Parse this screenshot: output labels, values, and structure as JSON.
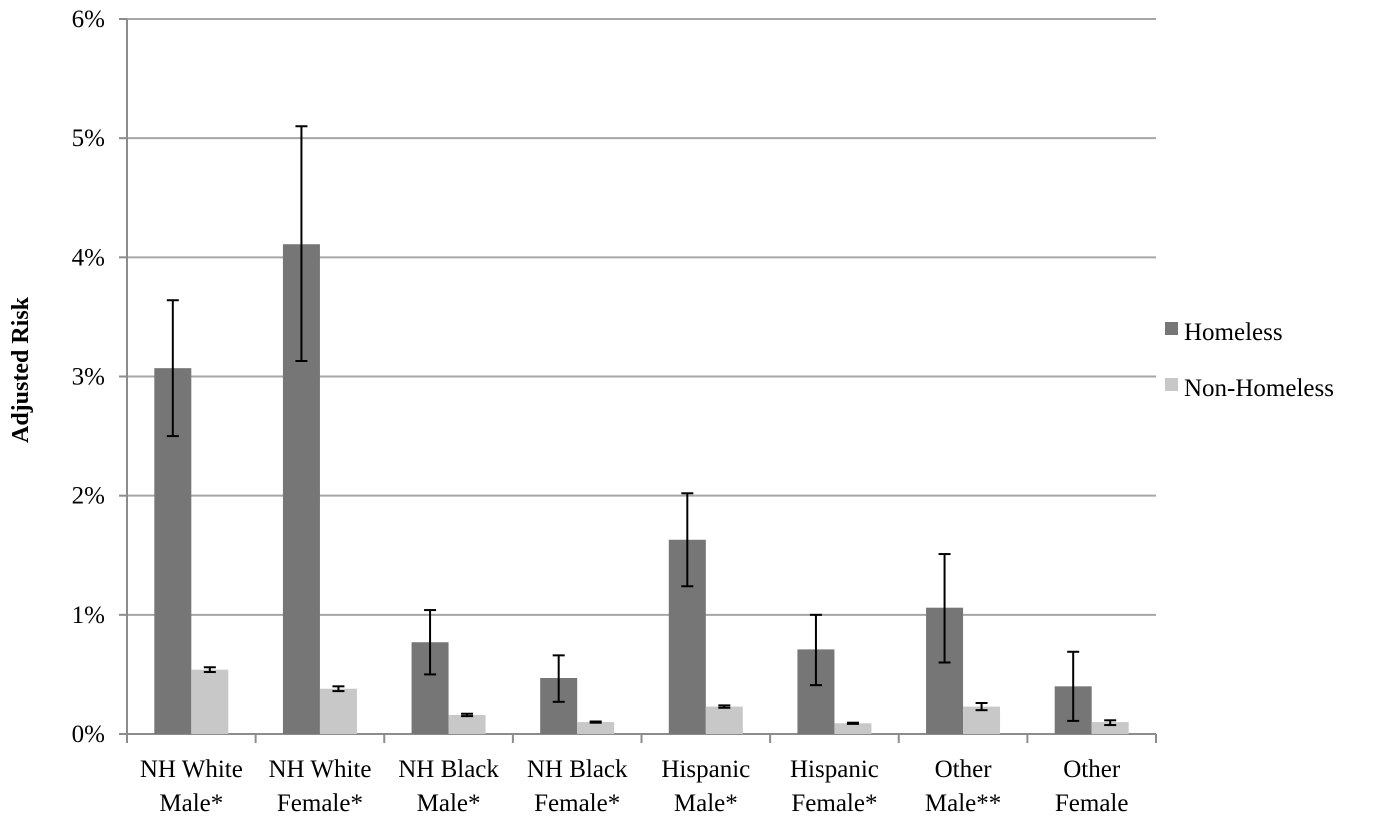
{
  "chart_data": {
    "type": "bar",
    "title": "",
    "xlabel": "",
    "ylabel": "Adjusted Risk",
    "ylim": [
      0,
      6
    ],
    "ytick_values": [
      0,
      1,
      2,
      3,
      4,
      5,
      6
    ],
    "ytick_labels": [
      "0%",
      "1%",
      "2%",
      "3%",
      "4%",
      "5%",
      "6%"
    ],
    "grid": true,
    "legend_position": "right",
    "categories": [
      [
        "NH White",
        "Male*"
      ],
      [
        "NH White",
        "Female*"
      ],
      [
        "NH Black",
        "Male*"
      ],
      [
        "NH Black",
        "Female*"
      ],
      [
        "Hispanic",
        "Male*"
      ],
      [
        "Hispanic",
        "Female*"
      ],
      [
        "Other",
        "Male**"
      ],
      [
        "Other",
        "Female"
      ]
    ],
    "series": [
      {
        "name": "Homeless",
        "color": "#767676",
        "values": [
          3.07,
          4.11,
          0.77,
          0.47,
          1.63,
          0.71,
          1.06,
          0.4
        ],
        "error_low": [
          2.5,
          3.13,
          0.5,
          0.27,
          1.24,
          0.41,
          0.6,
          0.11
        ],
        "error_high": [
          3.64,
          5.1,
          1.04,
          0.66,
          2.02,
          1.0,
          1.51,
          0.69
        ]
      },
      {
        "name": "Non-Homeless",
        "color": "#c8c8c8",
        "values": [
          0.54,
          0.38,
          0.16,
          0.1,
          0.23,
          0.09,
          0.23,
          0.1
        ],
        "error_low": [
          0.52,
          0.36,
          0.15,
          0.095,
          0.22,
          0.085,
          0.2,
          0.075
        ],
        "error_high": [
          0.56,
          0.4,
          0.17,
          0.105,
          0.24,
          0.095,
          0.26,
          0.115
        ]
      }
    ]
  }
}
